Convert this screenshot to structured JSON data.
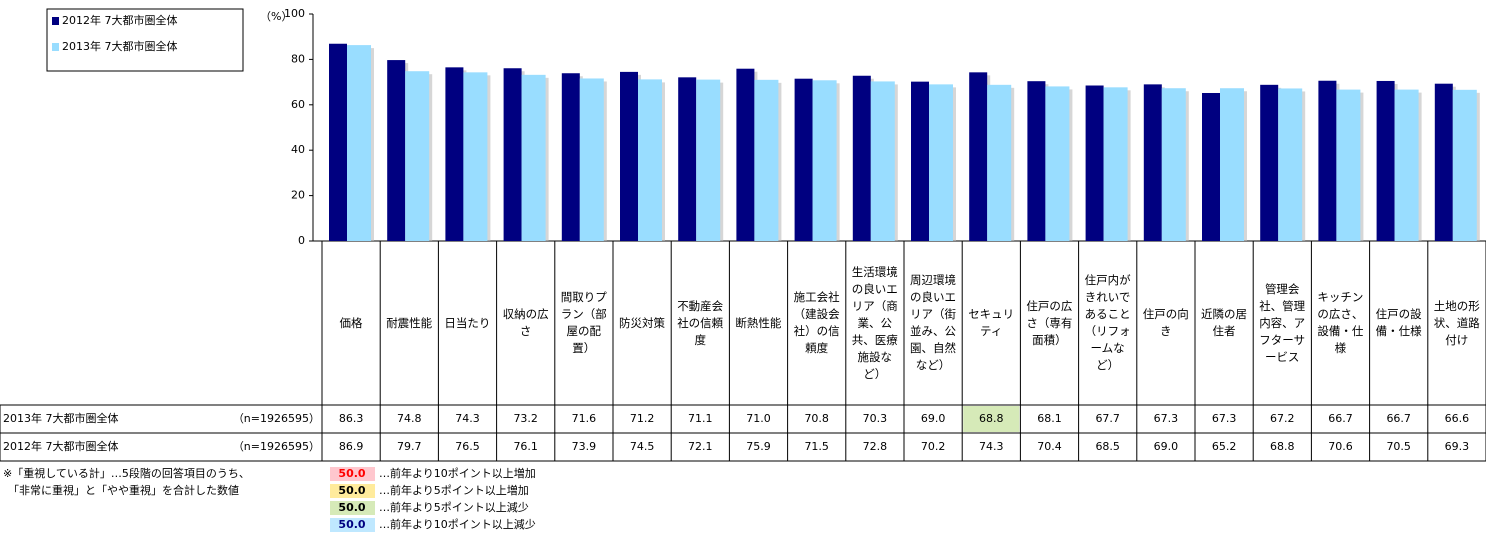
{
  "chart_data": {
    "type": "bar",
    "y_unit": "（%）",
    "categories": [
      "価格",
      "耐震性能",
      "日当たり",
      "収納の広さ",
      "間取りプラン（部屋の配置）",
      "防災対策",
      "不動産会社の信頼度",
      "断熱性能",
      "施工会社（建設会社）の信頼度",
      "生活環境の良いエリア（商業、公共、医療施設など）",
      "周辺環境の良いエリア（街並み、公園、自然など）",
      "セキュリティ",
      "住戸の広さ（専有面積）",
      "住戸内がきれいであること（リフォームなど）",
      "住戸の向き",
      "近隣の居住者",
      "管理会社、管理内容、アフターサービス",
      "キッチンの広さ、設備・仕様",
      "住戸の設備・仕様",
      "土地の形状、道路付け"
    ],
    "series": [
      {
        "name": "2012年 7大都市圏全体",
        "color": "#000080",
        "n": "（n=1926595）",
        "values": [
          86.9,
          79.7,
          76.5,
          76.1,
          73.9,
          74.5,
          72.1,
          75.9,
          71.5,
          72.8,
          70.2,
          74.3,
          70.4,
          68.5,
          69.0,
          65.2,
          68.8,
          70.6,
          70.5,
          69.3
        ],
        "value_labels": [
          "86.9",
          "79.7",
          "76.5",
          "76.1",
          "73.9",
          "74.5",
          "72.1",
          "75.9",
          "71.5",
          "72.8",
          "70.2",
          "74.3",
          "70.4",
          "68.5",
          "69.0",
          "65.2",
          "68.8",
          "70.6",
          "70.5",
          "69.3"
        ]
      },
      {
        "name": "2013年 7大都市圏全体",
        "color": "#99ddff",
        "n": "（n=1926595）",
        "values": [
          86.3,
          74.8,
          74.3,
          73.2,
          71.6,
          71.2,
          71.1,
          71.0,
          70.8,
          70.3,
          69.0,
          68.8,
          68.1,
          67.7,
          67.3,
          67.3,
          67.2,
          66.7,
          66.7,
          66.6
        ],
        "value_labels": [
          "86.3",
          "74.8",
          "74.3",
          "73.2",
          "71.6",
          "71.2",
          "71.1",
          "71.0",
          "70.8",
          "70.3",
          "69.0",
          "68.8",
          "68.1",
          "67.7",
          "67.3",
          "67.3",
          "67.2",
          "66.7",
          "66.7",
          "66.6"
        ],
        "highlight": [
          {
            "index": 11,
            "color": "#d6eab8"
          }
        ]
      }
    ],
    "ylim": [
      0,
      100
    ],
    "yticks": [
      0,
      20,
      40,
      60,
      80,
      100
    ],
    "footnote": [
      "※「重視している計」…5段階の回答項目のうち、",
      "「非常に重視」と「やや重視」を合計した数値"
    ],
    "notes": [
      {
        "sample": "50.0",
        "text": "…前年より10ポイント以上増加",
        "color": "#ffc7ce",
        "text_color": "#ff0000"
      },
      {
        "sample": "50.0",
        "text": "…前年より5ポイント以上増加",
        "color": "#ffeb9c",
        "text_color": "#000000"
      },
      {
        "sample": "50.0",
        "text": "…前年より5ポイント以上減少",
        "color": "#d6eab8",
        "text_color": "#000000"
      },
      {
        "sample": "50.0",
        "text": "…前年より10ポイント以上減少",
        "color": "#bfe8ff",
        "text_color": "#000080"
      }
    ]
  }
}
